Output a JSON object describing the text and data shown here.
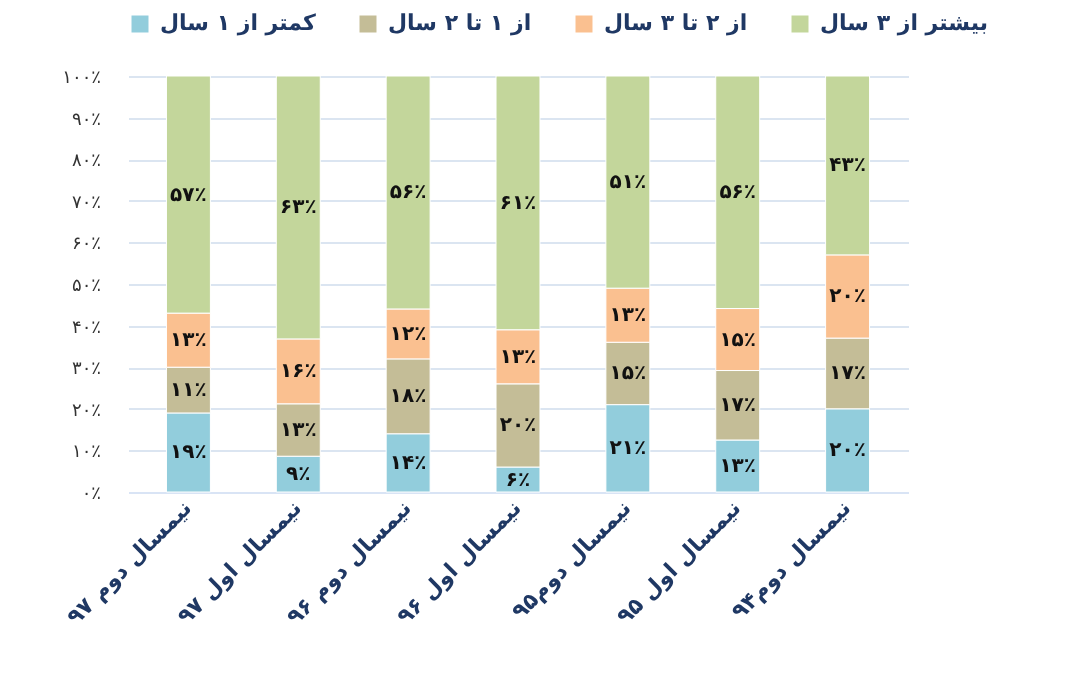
{
  "chart_data": {
    "type": "bar",
    "stacked": true,
    "categories": [
      "نیمسال دوم ۹۷",
      "نیمسال اول ۹۷",
      "نیمسال دوم ۹۶",
      "نیمسال اول ۹۶",
      "نیمسال دوم۹۵",
      "نیمسال اول ۹۵",
      "نیمسال دوم۹۴"
    ],
    "series": [
      {
        "name": "کمتر از ۱ سال",
        "color": "#92cddc",
        "values": [
          19,
          8.6,
          14,
          6,
          21,
          12.5,
          20
        ],
        "value_labels": [
          "۱۹٪",
          "۹٪",
          "۱۴٪",
          "۶٪",
          "۲۱٪",
          "۱۳٪",
          "۲۰٪"
        ]
      },
      {
        "name": "از ۱ تا ۲ سال",
        "color": "#c4bd97",
        "values": [
          11,
          12.6,
          18,
          20,
          15,
          16.7,
          17
        ],
        "value_labels": [
          "۱۱٪",
          "۱۳٪",
          "۱۸٪",
          "۲۰٪",
          "۱۵٪",
          "۱۷٪",
          "۱۷٪"
        ]
      },
      {
        "name": "از ۲ تا ۳ سال",
        "color": "#fac090",
        "values": [
          13,
          15.6,
          12,
          13,
          13,
          14.9,
          20
        ],
        "value_labels": [
          "۱۳٪",
          "۱۶٪",
          "۱۲٪",
          "۱۳٪",
          "۱۳٪",
          "۱۵٪",
          "۲۰٪"
        ]
      },
      {
        "name": "بیشتر از ۳ سال",
        "color": "#c3d69b",
        "values": [
          57,
          63.2,
          56,
          61,
          51,
          55.9,
          43
        ],
        "value_labels": [
          "۵۷٪",
          "۶۳٪",
          "۵۶٪",
          "۶۱٪",
          "۵۱٪",
          "۵۶٪",
          "۴۳٪"
        ]
      }
    ],
    "ylim": [
      0,
      100
    ],
    "yticks": [
      {
        "value": 0,
        "label": "۰٪"
      },
      {
        "value": 10,
        "label": "۱۰٪"
      },
      {
        "value": 20,
        "label": "۲۰٪"
      },
      {
        "value": 30,
        "label": "۳۰٪"
      },
      {
        "value": 40,
        "label": "۴۰٪"
      },
      {
        "value": 50,
        "label": "۵۰٪"
      },
      {
        "value": 60,
        "label": "۶۰٪"
      },
      {
        "value": 70,
        "label": "۷۰٪"
      },
      {
        "value": 80,
        "label": "۸۰٪"
      },
      {
        "value": 90,
        "label": "۹۰٪"
      },
      {
        "value": 100,
        "label": "۱۰۰٪"
      }
    ],
    "grid": "y",
    "legend": "top"
  }
}
